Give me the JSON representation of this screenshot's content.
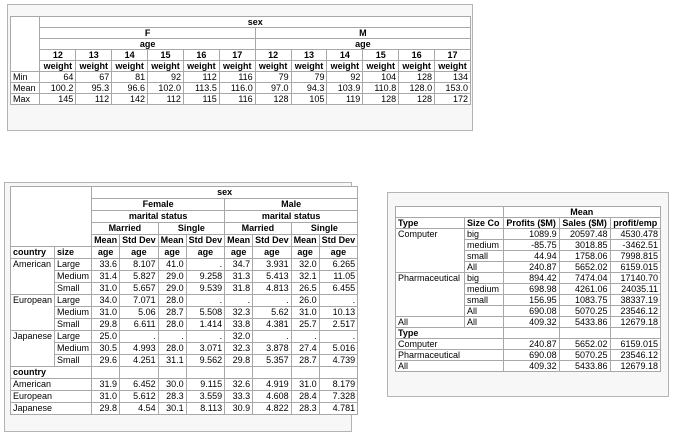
{
  "table1": {
    "sex": "sex",
    "groups": [
      {
        "label": "F",
        "subgroup": "age",
        "ages": [
          "12",
          "13",
          "14",
          "15",
          "16",
          "17"
        ],
        "measure": "weight"
      },
      {
        "label": "M",
        "subgroup": "age",
        "ages": [
          "12",
          "13",
          "14",
          "15",
          "16",
          "17"
        ],
        "measure": "weight"
      }
    ],
    "rows": [
      {
        "label": "Min",
        "values": [
          "64",
          "67",
          "81",
          "92",
          "112",
          "116",
          "79",
          "79",
          "92",
          "104",
          "128",
          "134"
        ]
      },
      {
        "label": "Mean",
        "values": [
          "100.2",
          "95.3",
          "96.6",
          "102.0",
          "113.5",
          "116.0",
          "97.0",
          "94.3",
          "103.9",
          "110.8",
          "128.0",
          "153.0"
        ]
      },
      {
        "label": "Max",
        "values": [
          "145",
          "112",
          "142",
          "112",
          "115",
          "116",
          "128",
          "105",
          "119",
          "128",
          "128",
          "172"
        ]
      }
    ]
  },
  "table2": {
    "sex": "sex",
    "groups": [
      {
        "label": "Female",
        "subgroup": "marital status",
        "statuses": [
          {
            "label": "Married",
            "stats": [
              "Mean",
              "Std Dev"
            ]
          },
          {
            "label": "Single",
            "stats": [
              "Mean",
              "Std Dev"
            ]
          }
        ]
      },
      {
        "label": "Male",
        "subgroup": "marital status",
        "statuses": [
          {
            "label": "Married",
            "stats": [
              "Mean",
              "Std Dev"
            ]
          },
          {
            "label": "Single",
            "stats": [
              "Mean",
              "Std Dev"
            ]
          }
        ]
      }
    ],
    "row_labels": [
      "country",
      "size"
    ],
    "var": "age",
    "body": [
      {
        "label": "American",
        "rows": [
          {
            "label": "Large",
            "values": [
              "33.6",
              "8.107",
              "41.0",
              ".",
              "34.7",
              "3.931",
              "32.0",
              "6.265"
            ]
          },
          {
            "label": "Medium",
            "values": [
              "31.4",
              "5.827",
              "29.0",
              "9.258",
              "31.3",
              "5.413",
              "32.1",
              "11.05"
            ]
          },
          {
            "label": "Small",
            "values": [
              "31.0",
              "5.657",
              "29.0",
              "9.539",
              "31.8",
              "4.813",
              "26.5",
              "6.455"
            ]
          }
        ]
      },
      {
        "label": "European",
        "rows": [
          {
            "label": "Large",
            "values": [
              "34.0",
              "7.071",
              "28.0",
              ".",
              ".",
              ".",
              "26.0",
              "."
            ]
          },
          {
            "label": "Medium",
            "values": [
              "31.0",
              "5.06",
              "28.7",
              "5.508",
              "32.3",
              "5.62",
              "31.0",
              "10.13"
            ]
          },
          {
            "label": "Small",
            "values": [
              "29.8",
              "6.611",
              "28.0",
              "1.414",
              "33.8",
              "4.381",
              "25.7",
              "2.517"
            ]
          }
        ]
      },
      {
        "label": "Japanese",
        "rows": [
          {
            "label": "Large",
            "values": [
              "25.0",
              ".",
              ".",
              ".",
              "32.0",
              ".",
              ".",
              "."
            ]
          },
          {
            "label": "Medium",
            "values": [
              "30.5",
              "4.993",
              "28.0",
              "3.071",
              "32.3",
              "3.878",
              "27.4",
              "5.016"
            ]
          },
          {
            "label": "Small",
            "values": [
              "29.6",
              "4.251",
              "31.1",
              "9.562",
              "29.8",
              "5.357",
              "28.7",
              "4.739"
            ]
          }
        ]
      }
    ],
    "section": {
      "label": "country",
      "rows": [
        {
          "label": "American",
          "values": [
            "31.9",
            "6.452",
            "30.0",
            "9.115",
            "32.6",
            "4.919",
            "31.0",
            "8.179"
          ]
        },
        {
          "label": "European",
          "values": [
            "31.0",
            "5.612",
            "28.3",
            "3.559",
            "33.3",
            "4.608",
            "28.4",
            "7.328"
          ]
        },
        {
          "label": "Japanese",
          "values": [
            "29.8",
            "4.54",
            "30.1",
            "8.113",
            "30.9",
            "4.822",
            "28.3",
            "4.781"
          ]
        }
      ]
    }
  },
  "table3": {
    "stat": "Mean",
    "row_labels": [
      "Type",
      "Size Co"
    ],
    "columns": [
      "Profits ($M)",
      "Sales ($M)",
      "profit/emp"
    ],
    "body": [
      {
        "label": "Computer",
        "rows": [
          {
            "label": "big",
            "values": [
              "1089.9",
              "20597.48",
              "4530.478"
            ]
          },
          {
            "label": "medium",
            "values": [
              "-85.75",
              "3018.85",
              "-3462.51"
            ]
          },
          {
            "label": "small",
            "values": [
              "44.94",
              "1758.06",
              "7998.815"
            ]
          },
          {
            "label": "All",
            "values": [
              "240.87",
              "5652.02",
              "6159.015"
            ]
          }
        ]
      },
      {
        "label": "Pharmaceutical",
        "rows": [
          {
            "label": "big",
            "values": [
              "894.42",
              "7474.04",
              "17140.70"
            ]
          },
          {
            "label": "medium",
            "values": [
              "698.98",
              "4261.06",
              "24035.11"
            ]
          },
          {
            "label": "small",
            "values": [
              "156.95",
              "1083.75",
              "38337.19"
            ]
          },
          {
            "label": "All",
            "values": [
              "690.08",
              "5070.25",
              "23546.12"
            ]
          }
        ]
      },
      {
        "label": "All",
        "rows": [
          {
            "label": "All",
            "values": [
              "409.32",
              "5433.86",
              "12679.18"
            ]
          }
        ]
      }
    ],
    "section": {
      "label": "Type",
      "rows": [
        {
          "label": "Computer",
          "values": [
            "240.87",
            "5652.02",
            "6159.015"
          ]
        },
        {
          "label": "Pharmaceutical",
          "values": [
            "690.08",
            "5070.25",
            "23546.12"
          ]
        },
        {
          "label": "All",
          "values": [
            "409.32",
            "5433.86",
            "12679.18"
          ]
        }
      ]
    }
  }
}
